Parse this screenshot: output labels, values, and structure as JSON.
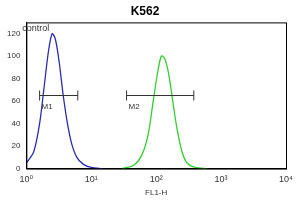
{
  "chart_data": {
    "type": "line",
    "title": "K562",
    "x_label": "FL1-H",
    "log": "x",
    "grid": false,
    "legend": false,
    "xlim": [
      1,
      10000
    ],
    "xticks": [
      {
        "value": 1,
        "label": "10⁰"
      },
      {
        "value": 10,
        "label": "10¹"
      },
      {
        "value": 100,
        "label": "10²"
      },
      {
        "value": 1000,
        "label": "10³"
      },
      {
        "value": 10000,
        "label": "10⁴"
      }
    ],
    "ylim": [
      0,
      130
    ],
    "yticks": [
      0,
      20,
      40,
      60,
      80,
      100,
      120
    ],
    "series": [
      {
        "name": "control",
        "color": "#2b2bb0",
        "x": [
          1.0,
          1.3,
          1.6,
          1.9,
          2.2,
          2.5,
          2.8,
          3.2,
          3.7,
          4.3,
          5,
          6,
          7.5,
          10,
          15
        ],
        "values": [
          5,
          15,
          40,
          75,
          105,
          120,
          115,
          95,
          65,
          40,
          22,
          10,
          4,
          1,
          0
        ]
      },
      {
        "color": "#33cc33",
        "x": [
          30,
          45,
          60,
          75,
          90,
          105,
          120,
          135,
          155,
          180,
          210,
          250,
          300,
          400,
          600
        ],
        "values": [
          0,
          3,
          12,
          30,
          60,
          85,
          100,
          98,
          85,
          60,
          35,
          15,
          5,
          1,
          0
        ]
      }
    ],
    "gates": [
      {
        "label": "M1",
        "x": [
          1.6,
          6.2
        ],
        "y": 65
      },
      {
        "label": "M2",
        "x": [
          35,
          380
        ],
        "y": 65
      }
    ]
  }
}
